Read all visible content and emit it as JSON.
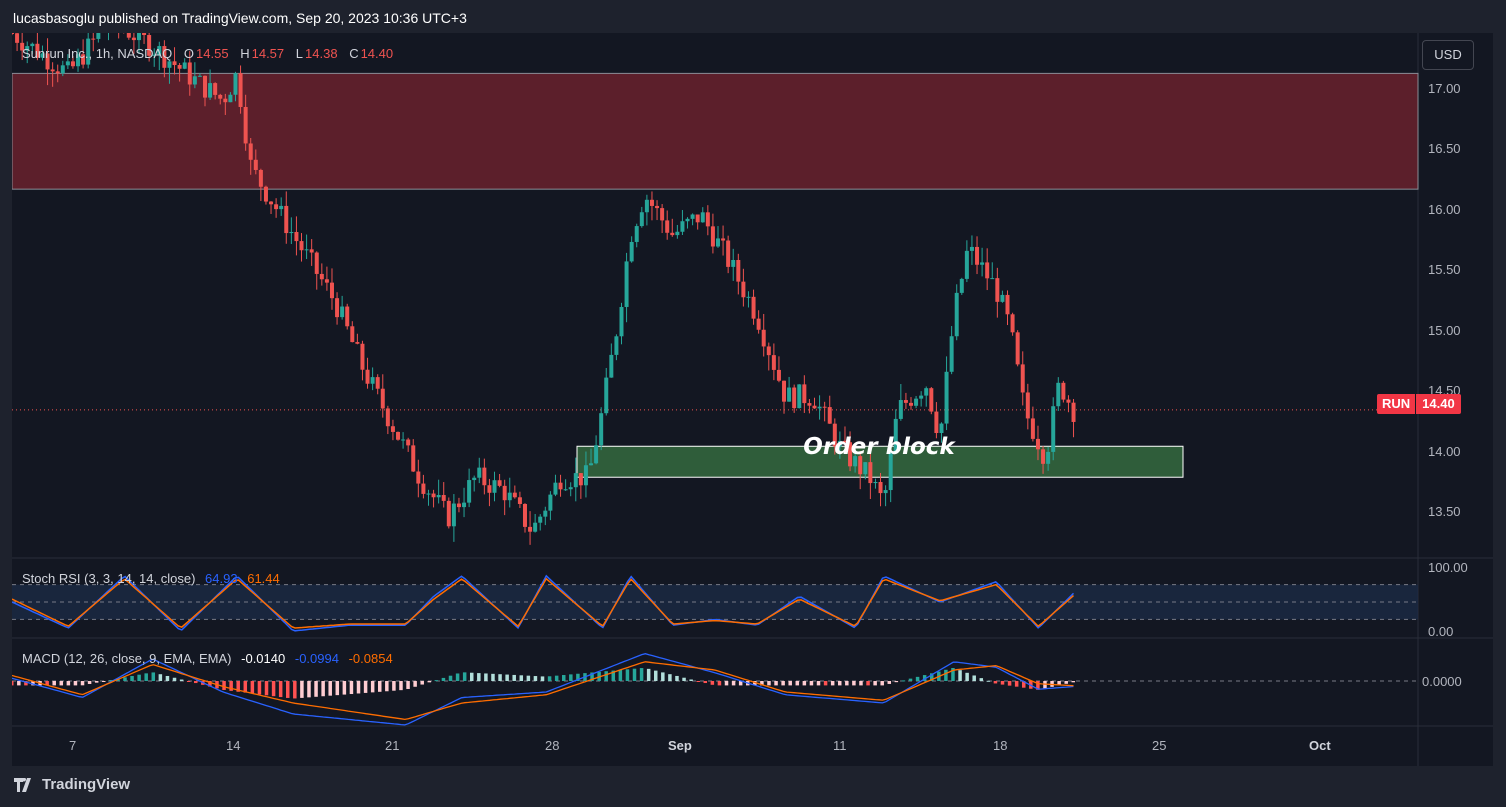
{
  "publisher": "lucasbasoglu published on TradingView.com, Sep 20, 2023 10:36 UTC+3",
  "legend": {
    "symbol": "Sunrun Inc., 1h, NASDAQ",
    "open_label": "O",
    "open": "14.55",
    "high_label": "H",
    "high": "14.57",
    "low_label": "L",
    "low": "14.38",
    "close_label": "C",
    "close": "14.40"
  },
  "currency_button": "USD",
  "price_axis": [
    "17.00",
    "16.50",
    "16.00",
    "15.50",
    "15.00",
    "14.50",
    "14.00",
    "13.50"
  ],
  "last_price": {
    "symbol": "RUN",
    "price": "14.40"
  },
  "annotation": "Order block",
  "stoch_rsi": {
    "label": "Stoch RSI (3, 3, 14, 14, close)",
    "k": "64.93",
    "d": "61.44",
    "axis": [
      "100.00",
      "0.00"
    ]
  },
  "macd": {
    "label": "MACD (12, 26, close, 9, EMA, EMA)",
    "hist": "-0.0140",
    "macd": "-0.0994",
    "signal": "-0.0854",
    "axis": [
      "0.0000"
    ]
  },
  "time_axis": [
    {
      "label": "7",
      "bold": false
    },
    {
      "label": "14",
      "bold": false
    },
    {
      "label": "21",
      "bold": false
    },
    {
      "label": "28",
      "bold": false
    },
    {
      "label": "Sep",
      "bold": true
    },
    {
      "label": "11",
      "bold": false
    },
    {
      "label": "18",
      "bold": false
    },
    {
      "label": "25",
      "bold": false
    },
    {
      "label": "Oct",
      "bold": true
    }
  ],
  "footer_brand": "TradingView",
  "colors": {
    "up": "#26a69a",
    "down": "#ef5350",
    "zone_red": "#5c1f2b",
    "zone_green": "#2f5d3a",
    "stoch_k": "#2962ff",
    "stoch_d": "#ff6d00"
  },
  "chart_data": {
    "type": "candlestick",
    "price_ylim": [
      13.3,
      17.2
    ],
    "zones": [
      {
        "name": "supply",
        "from": 16.04,
        "to": 16.9
      },
      {
        "name": "order-block",
        "from": 13.9,
        "to": 14.13
      }
    ],
    "price_path": [
      [
        0,
        17.2
      ],
      [
        0.04,
        16.9
      ],
      [
        0.07,
        17.3
      ],
      [
        0.1,
        17.1
      ],
      [
        0.13,
        16.85
      ],
      [
        0.15,
        16.7
      ],
      [
        0.16,
        16.9
      ],
      [
        0.17,
        16.2
      ],
      [
        0.2,
        15.7
      ],
      [
        0.23,
        15.2
      ],
      [
        0.25,
        14.7
      ],
      [
        0.27,
        14.3
      ],
      [
        0.29,
        13.9
      ],
      [
        0.31,
        13.6
      ],
      [
        0.33,
        13.9
      ],
      [
        0.35,
        13.8
      ],
      [
        0.37,
        13.5
      ],
      [
        0.39,
        13.9
      ],
      [
        0.41,
        13.9
      ],
      [
        0.42,
        14.4
      ],
      [
        0.43,
        15.0
      ],
      [
        0.44,
        15.7
      ],
      [
        0.45,
        16.0
      ],
      [
        0.47,
        15.7
      ],
      [
        0.49,
        15.85
      ],
      [
        0.51,
        15.5
      ],
      [
        0.53,
        15.1
      ],
      [
        0.55,
        14.5
      ],
      [
        0.57,
        14.5
      ],
      [
        0.59,
        14.1
      ],
      [
        0.61,
        13.9
      ],
      [
        0.62,
        13.7
      ],
      [
        0.63,
        14.4
      ],
      [
        0.65,
        14.6
      ],
      [
        0.66,
        14.2
      ],
      [
        0.67,
        15.1
      ],
      [
        0.68,
        15.6
      ],
      [
        0.7,
        15.3
      ],
      [
        0.71,
        15.0
      ],
      [
        0.72,
        14.4
      ],
      [
        0.735,
        14.05
      ],
      [
        0.745,
        14.6
      ],
      [
        0.755,
        14.4
      ]
    ],
    "stoch_k_path": [
      [
        0,
        50
      ],
      [
        0.04,
        5
      ],
      [
        0.08,
        95
      ],
      [
        0.12,
        0
      ],
      [
        0.16,
        95
      ],
      [
        0.2,
        0
      ],
      [
        0.24,
        10
      ],
      [
        0.28,
        10
      ],
      [
        0.3,
        60
      ],
      [
        0.32,
        95
      ],
      [
        0.36,
        5
      ],
      [
        0.38,
        95
      ],
      [
        0.42,
        5
      ],
      [
        0.44,
        95
      ],
      [
        0.47,
        10
      ],
      [
        0.5,
        20
      ],
      [
        0.53,
        10
      ],
      [
        0.56,
        60
      ],
      [
        0.6,
        5
      ],
      [
        0.62,
        95
      ],
      [
        0.66,
        50
      ],
      [
        0.7,
        85
      ],
      [
        0.73,
        5
      ],
      [
        0.755,
        65
      ]
    ],
    "stoch_d_path": [
      [
        0,
        55
      ],
      [
        0.04,
        8
      ],
      [
        0.08,
        90
      ],
      [
        0.12,
        5
      ],
      [
        0.16,
        90
      ],
      [
        0.2,
        5
      ],
      [
        0.24,
        12
      ],
      [
        0.28,
        12
      ],
      [
        0.3,
        55
      ],
      [
        0.32,
        90
      ],
      [
        0.36,
        8
      ],
      [
        0.38,
        90
      ],
      [
        0.42,
        8
      ],
      [
        0.44,
        90
      ],
      [
        0.47,
        12
      ],
      [
        0.5,
        18
      ],
      [
        0.53,
        12
      ],
      [
        0.56,
        55
      ],
      [
        0.6,
        8
      ],
      [
        0.62,
        90
      ],
      [
        0.66,
        52
      ],
      [
        0.7,
        80
      ],
      [
        0.73,
        8
      ],
      [
        0.755,
        61
      ]
    ],
    "macd_path": [
      [
        0,
        0.05
      ],
      [
        0.05,
        -0.3
      ],
      [
        0.1,
        0.4
      ],
      [
        0.15,
        -0.2
      ],
      [
        0.2,
        -0.6
      ],
      [
        0.28,
        -0.8
      ],
      [
        0.32,
        -0.3
      ],
      [
        0.38,
        -0.2
      ],
      [
        0.45,
        0.5
      ],
      [
        0.5,
        0.15
      ],
      [
        0.55,
        -0.25
      ],
      [
        0.62,
        -0.4
      ],
      [
        0.67,
        0.35
      ],
      [
        0.7,
        0.25
      ],
      [
        0.73,
        -0.15
      ],
      [
        0.755,
        -0.1
      ]
    ],
    "signal_path": [
      [
        0,
        0.1
      ],
      [
        0.05,
        -0.25
      ],
      [
        0.1,
        0.3
      ],
      [
        0.15,
        -0.1
      ],
      [
        0.2,
        -0.4
      ],
      [
        0.28,
        -0.7
      ],
      [
        0.32,
        -0.4
      ],
      [
        0.38,
        -0.25
      ],
      [
        0.45,
        0.35
      ],
      [
        0.5,
        0.2
      ],
      [
        0.55,
        -0.2
      ],
      [
        0.62,
        -0.35
      ],
      [
        0.67,
        0.2
      ],
      [
        0.7,
        0.28
      ],
      [
        0.73,
        -0.05
      ],
      [
        0.755,
        -0.085
      ]
    ]
  }
}
